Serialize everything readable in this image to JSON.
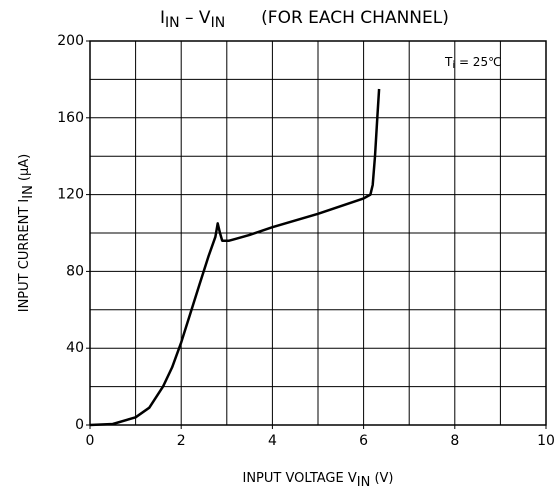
{
  "chart_data": {
    "type": "line",
    "title": [
      "I",
      "IN",
      " – V",
      "IN",
      "(FOR EACH CHANNEL)"
    ],
    "xlabel": [
      "INPUT VOLTAGE   V",
      "IN",
      "  (V)"
    ],
    "ylabel": [
      "INPUT CURRENT   I",
      "IN",
      "  (μA)"
    ],
    "annotation": [
      "T",
      "i",
      " = 25℃"
    ],
    "x": [
      0,
      0.5,
      1,
      1.3,
      1.6,
      1.8,
      2,
      2.2,
      2.4,
      2.6,
      2.75,
      2.8,
      2.85,
      2.9,
      3.05,
      3.2,
      3.5,
      4,
      5,
      6,
      6.15,
      6.2,
      6.25,
      6.3,
      6.34
    ],
    "values": [
      0,
      0.5,
      4,
      9,
      20,
      30,
      43,
      58,
      73,
      88,
      98,
      105,
      100,
      96,
      96,
      97,
      99,
      103,
      110,
      118,
      120,
      125,
      140,
      160,
      175
    ],
    "color": "#000000",
    "xlim": [
      0,
      10
    ],
    "ylim": [
      0,
      200
    ],
    "xticks": [
      0,
      2,
      4,
      6,
      8,
      10
    ],
    "yticks": [
      0,
      40,
      80,
      120,
      160,
      200
    ],
    "xgrid": [
      1,
      2,
      3,
      4,
      5,
      6,
      7,
      8,
      9
    ],
    "ygrid": [
      20,
      40,
      60,
      80,
      100,
      120,
      140,
      160,
      180
    ],
    "grid": true
  }
}
